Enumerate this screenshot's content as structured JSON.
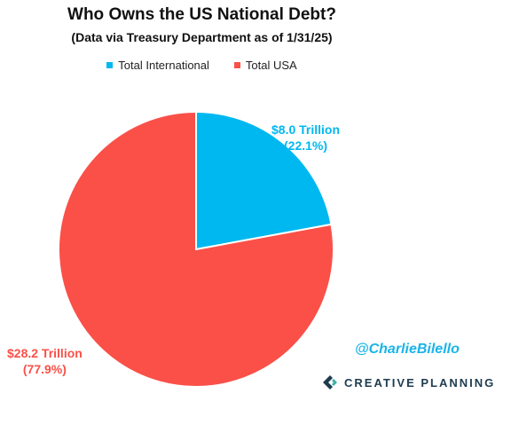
{
  "chart_data": {
    "type": "pie",
    "title": "Who Owns the US National Debt?",
    "subtitle": "(Data via Treasury Department as of 1/31/25)",
    "legend_position": "top",
    "slices": [
      {
        "name": "Total International",
        "value": 8.0,
        "percent": 22.1,
        "color": "#00b8f0",
        "label_line1": "$8.0 Trillion",
        "label_line2": "(22.1%)"
      },
      {
        "name": "Total USA",
        "value": 28.2,
        "percent": 77.9,
        "color": "#fa5048",
        "label_line1": "$28.2 Trillion",
        "label_line2": "(77.9%)"
      }
    ]
  },
  "watermark": {
    "handle": "@CharlieBilello",
    "brand": "CREATIVE PLANNING"
  }
}
